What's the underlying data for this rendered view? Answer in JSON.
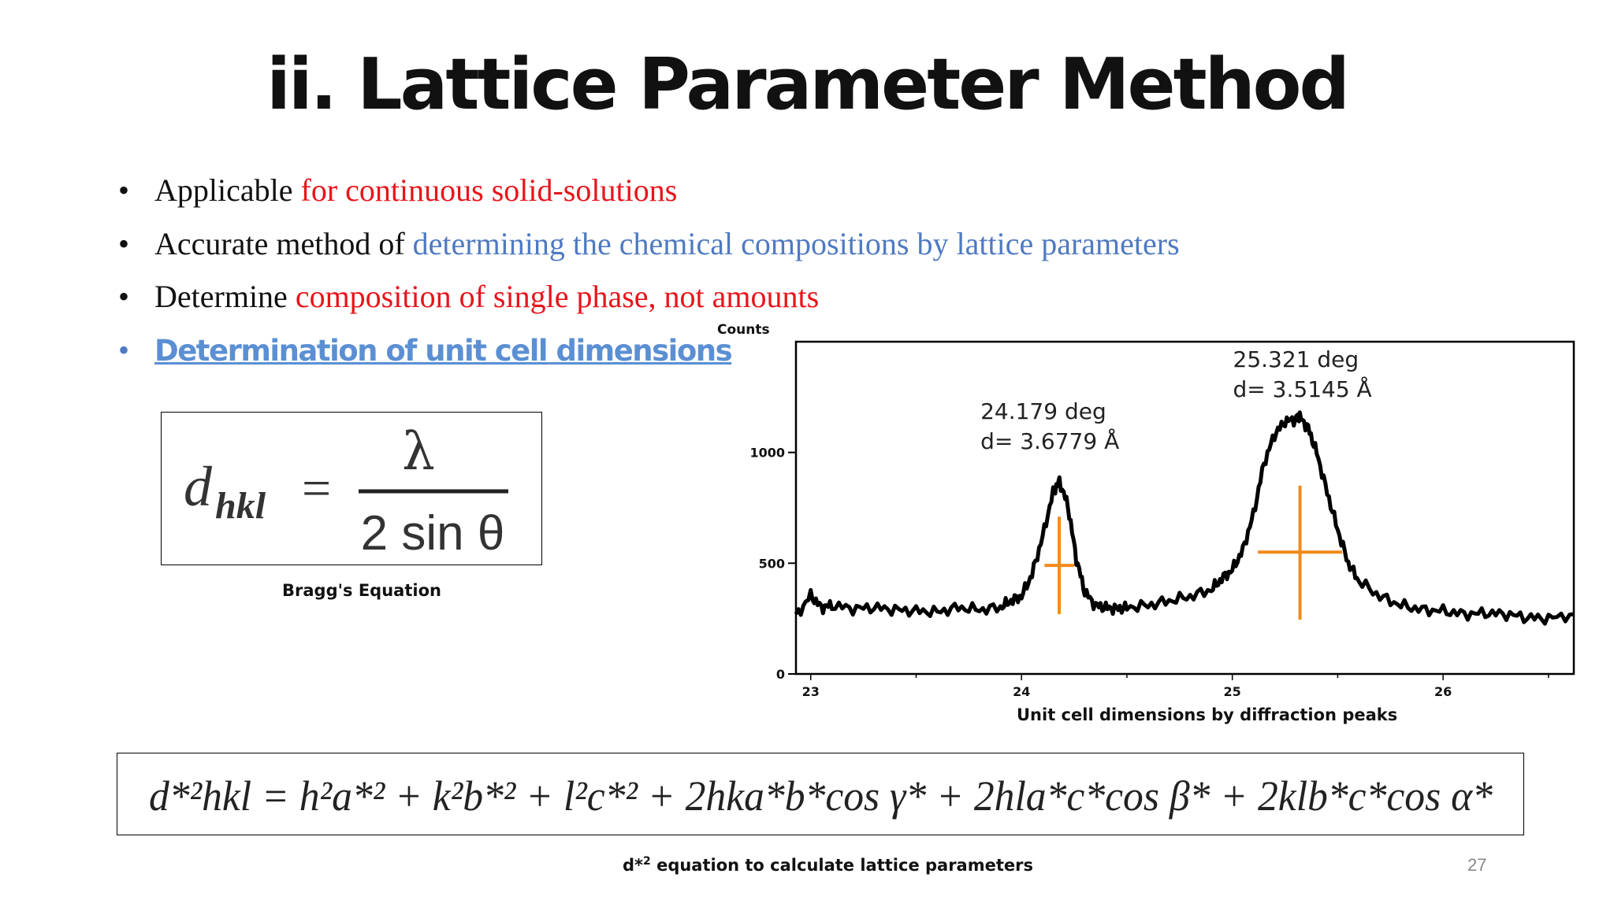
{
  "slide": {
    "title": "ii. Lattice Parameter Method",
    "page_number": "27",
    "bullets": [
      {
        "prefix": "Applicable ",
        "highlight": "for continuous solid-solutions",
        "highlight_color": "#e8141b"
      },
      {
        "prefix": "Accurate method of ",
        "highlight": "determining the chemical compositions by lattice parameters",
        "highlight_color": "#4f7ac2"
      },
      {
        "prefix": "Determine ",
        "highlight": "composition of single phase, not amounts",
        "highlight_color": "#e8141b"
      },
      {
        "prefix": "",
        "highlight": "Determination of unit cell dimensions",
        "highlight_color": "#5b8fd3"
      }
    ],
    "bullet_symbol": "•",
    "bragg": {
      "lhs_d": "d",
      "lhs_sub": "hkl",
      "equals": "=",
      "numerator": "λ",
      "denominator": "2 sin θ",
      "caption": "Bragg's Equation"
    },
    "dstar": {
      "equation": "d*²hkl = h²a*² + k²b*² + l²c*² + 2hka*b*cos γ* + 2hla*c*cos β* + 2klb*c*cos α*",
      "caption_prefix": "d*",
      "caption_sup": "2",
      "caption_suffix": " equation to calculate lattice parameters"
    }
  },
  "chart_data": {
    "type": "line",
    "title": "",
    "xlabel": "",
    "ylabel": "Counts",
    "caption": "Unit cell dimensions by diffraction peaks",
    "xlim": [
      22.93,
      26.62
    ],
    "ylim": [
      0,
      1500
    ],
    "x_ticks": [
      "23",
      "24",
      "25",
      "26"
    ],
    "y_ticks": [
      "0",
      "500",
      "1000"
    ],
    "line_color": "#000000",
    "marker_color": "#f28a1a",
    "series": [
      {
        "x": [
          22.93,
          23.0,
          23.05,
          23.1,
          23.2,
          23.3,
          23.4,
          23.5,
          23.6,
          23.7,
          23.8,
          23.9,
          23.95,
          24.0,
          24.05,
          24.1,
          24.15,
          24.18,
          24.22,
          24.26,
          24.3,
          24.35,
          24.4,
          24.45,
          24.5,
          24.6,
          24.7,
          24.8,
          24.9,
          24.95,
          25.0,
          25.05,
          25.1,
          25.15,
          25.2,
          25.25,
          25.3,
          25.32,
          25.36,
          25.4,
          25.45,
          25.5,
          25.55,
          25.6,
          25.7,
          25.8,
          25.9,
          26.0,
          26.1,
          26.2,
          26.3,
          26.4,
          26.5,
          26.62
        ],
        "y": [
          260,
          355,
          300,
          310,
          295,
          300,
          290,
          285,
          280,
          300,
          290,
          300,
          330,
          350,
          450,
          620,
          820,
          870,
          760,
          520,
          370,
          310,
          300,
          295,
          300,
          310,
          330,
          350,
          380,
          430,
          470,
          560,
          720,
          950,
          1080,
          1140,
          1150,
          1160,
          1110,
          1000,
          820,
          650,
          500,
          420,
          350,
          310,
          290,
          285,
          270,
          275,
          270,
          255,
          250,
          270
        ]
      }
    ],
    "peaks": [
      {
        "x": 24.179,
        "angle_label": "24.179 deg",
        "d_label": "d= 3.6779 Å",
        "marker_y": 490,
        "marker_y_top": 710,
        "marker_y_bottom": 270,
        "marker_half_width": 0.07
      },
      {
        "x": 25.321,
        "angle_label": "25.321 deg",
        "d_label": "d= 3.5145 Å",
        "marker_y": 550,
        "marker_y_top": 850,
        "marker_y_bottom": 245,
        "marker_half_width": 0.2
      }
    ]
  }
}
